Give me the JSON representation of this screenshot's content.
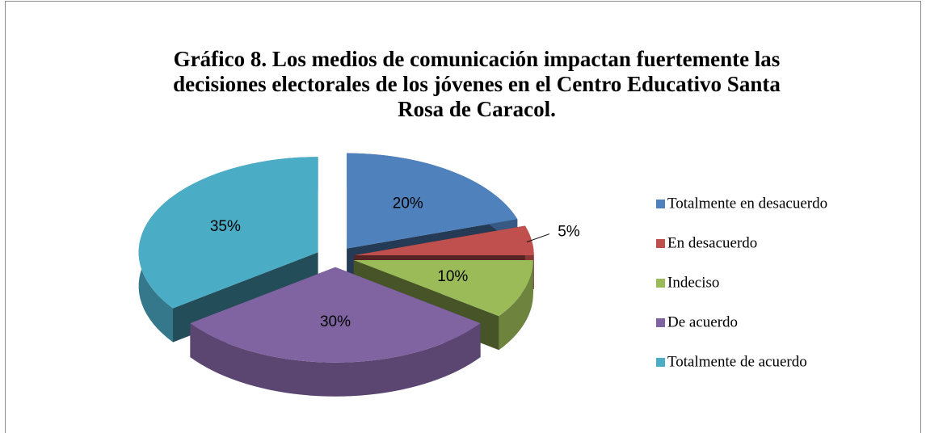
{
  "chart_data": {
    "type": "pie3d",
    "title": "Gráfico 8. Los medios de comunicación impactan fuertemente las decisiones electorales de los jóvenes en el Centro Educativo Santa Rosa de Caracol.",
    "categories": [
      "Totalmente en  desacuerdo",
      "En desacuerdo",
      "Indeciso",
      "De acuerdo",
      "Totalmente de acuerdo"
    ],
    "values": [
      20,
      5,
      10,
      30,
      35
    ],
    "value_labels": [
      "20%",
      "5%",
      "10%",
      "30%",
      "35%"
    ],
    "colors": [
      "#4f81bd",
      "#c0504d",
      "#9bbb59",
      "#8064a2",
      "#4bacc6"
    ],
    "legend": "right"
  }
}
